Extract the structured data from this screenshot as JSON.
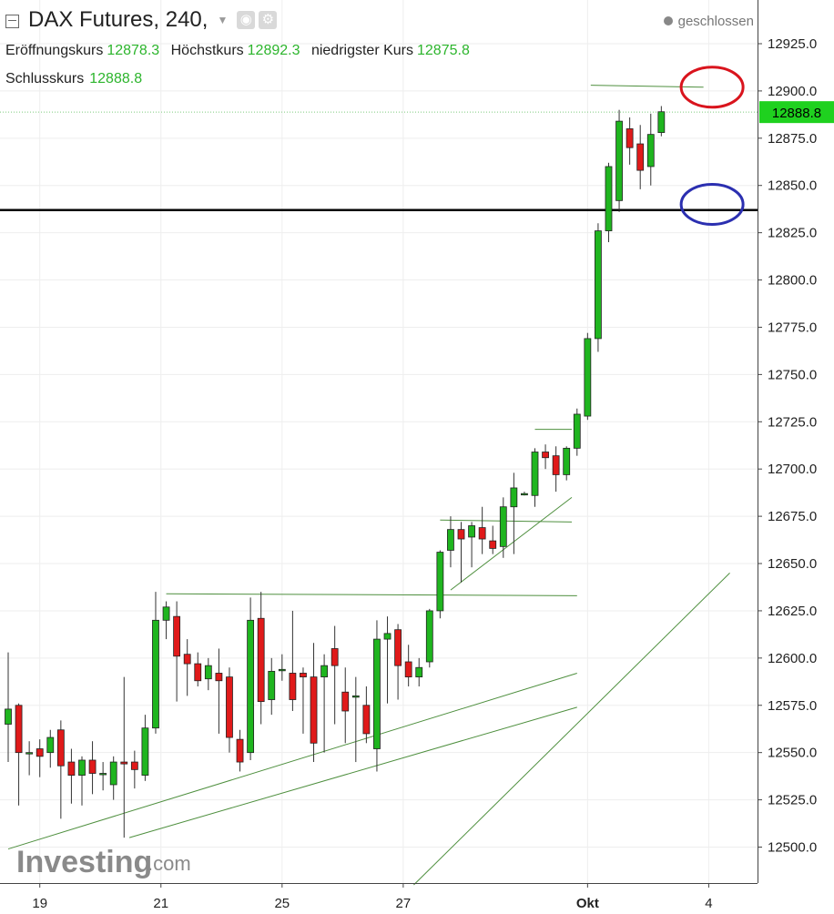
{
  "header": {
    "title": "DAX Futures, 240,",
    "status": "geschlossen",
    "open_label": "Eröffnungskurs",
    "open": "12878.3",
    "high_label": "Höchstkurs",
    "high": "12892.3",
    "low_label": "niedrigster Kurs",
    "low": "12875.8",
    "close_label": "Schlusskurs",
    "close": "12888.8"
  },
  "watermark": {
    "brand": "Investing",
    "suffix": ".com"
  },
  "colors": {
    "up": "#1fb51f",
    "down": "#e01a1a",
    "trend": "#4e8f3e",
    "level": "#000000",
    "ellipse_high": "#d9141d",
    "ellipse_low": "#2b2fb0"
  },
  "chart_data": {
    "type": "candlestick",
    "ylim": [
      12480,
      12940
    ],
    "y_ticks": [
      "12500.0",
      "12525.0",
      "12550.0",
      "12575.0",
      "12600.0",
      "12625.0",
      "12650.0",
      "12675.0",
      "12700.0",
      "12725.0",
      "12750.0",
      "12775.0",
      "12800.0",
      "12825.0",
      "12850.0",
      "12875.0",
      "12900.0",
      "12925.0"
    ],
    "x_ticks": [
      {
        "label": "19",
        "bar": 3.0
      },
      {
        "label": "21",
        "bar": 14.5
      },
      {
        "label": "25",
        "bar": 26.0
      },
      {
        "label": "27",
        "bar": 37.5
      },
      {
        "label": "Okt",
        "bar": 55.0
      },
      {
        "label": "4",
        "bar": 66.5
      }
    ],
    "current_price": "12888.8",
    "horizontal_level": 12837,
    "candles": [
      {
        "o": 12565,
        "h": 12603,
        "l": 12545,
        "c": 12573
      },
      {
        "o": 12575,
        "h": 12576,
        "l": 12522,
        "c": 12550
      },
      {
        "o": 12550,
        "h": 12556,
        "l": 12538,
        "c": 12550
      },
      {
        "o": 12552,
        "h": 12557,
        "l": 12537,
        "c": 12548
      },
      {
        "o": 12550,
        "h": 12562,
        "l": 12542,
        "c": 12558
      },
      {
        "o": 12562,
        "h": 12567,
        "l": 12515,
        "c": 12543
      },
      {
        "o": 12545,
        "h": 12552,
        "l": 12523,
        "c": 12538
      },
      {
        "o": 12538,
        "h": 12548,
        "l": 12522,
        "c": 12546
      },
      {
        "o": 12546,
        "h": 12556,
        "l": 12528,
        "c": 12539
      },
      {
        "o": 12539,
        "h": 12545,
        "l": 12530,
        "c": 12539
      },
      {
        "o": 12533,
        "h": 12548,
        "l": 12525,
        "c": 12545
      },
      {
        "o": 12545,
        "h": 12590,
        "l": 12505,
        "c": 12544
      },
      {
        "o": 12545,
        "h": 12551,
        "l": 12531,
        "c": 12541
      },
      {
        "o": 12538,
        "h": 12570,
        "l": 12535,
        "c": 12563
      },
      {
        "o": 12563,
        "h": 12635,
        "l": 12560,
        "c": 12620
      },
      {
        "o": 12620,
        "h": 12630,
        "l": 12610,
        "c": 12627
      },
      {
        "o": 12622,
        "h": 12630,
        "l": 12577,
        "c": 12601
      },
      {
        "o": 12602,
        "h": 12610,
        "l": 12580,
        "c": 12597
      },
      {
        "o": 12597,
        "h": 12603,
        "l": 12585,
        "c": 12588
      },
      {
        "o": 12589,
        "h": 12600,
        "l": 12583,
        "c": 12596
      },
      {
        "o": 12592,
        "h": 12605,
        "l": 12560,
        "c": 12588
      },
      {
        "o": 12590,
        "h": 12595,
        "l": 12550,
        "c": 12558
      },
      {
        "o": 12557,
        "h": 12562,
        "l": 12540,
        "c": 12545
      },
      {
        "o": 12550,
        "h": 12632,
        "l": 12546,
        "c": 12620
      },
      {
        "o": 12621,
        "h": 12635,
        "l": 12565,
        "c": 12577
      },
      {
        "o": 12578,
        "h": 12600,
        "l": 12570,
        "c": 12593
      },
      {
        "o": 12594,
        "h": 12602,
        "l": 12588,
        "c": 12594
      },
      {
        "o": 12592,
        "h": 12625,
        "l": 12572,
        "c": 12578
      },
      {
        "o": 12592,
        "h": 12595,
        "l": 12560,
        "c": 12590
      },
      {
        "o": 12590,
        "h": 12608,
        "l": 12545,
        "c": 12555
      },
      {
        "o": 12590,
        "h": 12602,
        "l": 12550,
        "c": 12596
      },
      {
        "o": 12605,
        "h": 12617,
        "l": 12565,
        "c": 12596
      },
      {
        "o": 12582,
        "h": 12595,
        "l": 12555,
        "c": 12572
      },
      {
        "o": 12580,
        "h": 12590,
        "l": 12545,
        "c": 12580
      },
      {
        "o": 12575,
        "h": 12585,
        "l": 12555,
        "c": 12560
      },
      {
        "o": 12552,
        "h": 12620,
        "l": 12540,
        "c": 12610
      },
      {
        "o": 12610,
        "h": 12622,
        "l": 12576,
        "c": 12613
      },
      {
        "o": 12615,
        "h": 12618,
        "l": 12578,
        "c": 12596
      },
      {
        "o": 12598,
        "h": 12607,
        "l": 12585,
        "c": 12590
      },
      {
        "o": 12590,
        "h": 12600,
        "l": 12585,
        "c": 12595
      },
      {
        "o": 12598,
        "h": 12626,
        "l": 12595,
        "c": 12625
      },
      {
        "o": 12625,
        "h": 12657,
        "l": 12621,
        "c": 12656
      },
      {
        "o": 12657,
        "h": 12675,
        "l": 12648,
        "c": 12668
      },
      {
        "o": 12668,
        "h": 12672,
        "l": 12640,
        "c": 12663
      },
      {
        "o": 12664,
        "h": 12672,
        "l": 12648,
        "c": 12670
      },
      {
        "o": 12669,
        "h": 12680,
        "l": 12655,
        "c": 12663
      },
      {
        "o": 12662,
        "h": 12670,
        "l": 12655,
        "c": 12658
      },
      {
        "o": 12659,
        "h": 12685,
        "l": 12653,
        "c": 12680
      },
      {
        "o": 12680,
        "h": 12698,
        "l": 12655,
        "c": 12690
      },
      {
        "o": 12687,
        "h": 12688,
        "l": 12686,
        "c": 12687
      },
      {
        "o": 12686,
        "h": 12711,
        "l": 12680,
        "c": 12709
      },
      {
        "o": 12709,
        "h": 12713,
        "l": 12700,
        "c": 12706
      },
      {
        "o": 12707,
        "h": 12712,
        "l": 12688,
        "c": 12697
      },
      {
        "o": 12697,
        "h": 12712,
        "l": 12694,
        "c": 12711
      },
      {
        "o": 12711,
        "h": 12732,
        "l": 12707,
        "c": 12729
      },
      {
        "o": 12728,
        "h": 12772,
        "l": 12726,
        "c": 12769
      },
      {
        "o": 12769,
        "h": 12830,
        "l": 12762,
        "c": 12826
      },
      {
        "o": 12826,
        "h": 12862,
        "l": 12820,
        "c": 12860
      },
      {
        "o": 12842,
        "h": 12890,
        "l": 12836,
        "c": 12884
      },
      {
        "o": 12880,
        "h": 12886,
        "l": 12861,
        "c": 12870
      },
      {
        "o": 12872,
        "h": 12882,
        "l": 12848,
        "c": 12858
      },
      {
        "o": 12860,
        "h": 12888,
        "l": 12850,
        "c": 12877
      },
      {
        "o": 12878,
        "h": 12892,
        "l": 12876,
        "c": 12889
      }
    ],
    "trend_lines": [
      {
        "x1": 0,
        "y1": 12499,
        "x2": 54.0,
        "y2": 12592
      },
      {
        "x1": 11.5,
        "y1": 12505,
        "x2": 54.0,
        "y2": 12574
      },
      {
        "x1": 15.0,
        "y1": 12634,
        "x2": 54.0,
        "y2": 12633
      },
      {
        "x1": 42.0,
        "y1": 12636,
        "x2": 53.5,
        "y2": 12685
      },
      {
        "x1": 41.0,
        "y1": 12673,
        "x2": 53.5,
        "y2": 12672
      },
      {
        "x1": 50.0,
        "y1": 12721,
        "x2": 53.5,
        "y2": 12721
      },
      {
        "x1": 55.3,
        "y1": 12903,
        "x2": 66.0,
        "y2": 12902
      },
      {
        "x1": 38.5,
        "y1": 12480,
        "x2": 68.5,
        "y2": 12645
      }
    ],
    "ellipses": [
      {
        "bar": 62.5,
        "y": 12902,
        "color_key": "ellipse_high"
      },
      {
        "bar": 62.5,
        "y": 12840,
        "color_key": "ellipse_low"
      }
    ]
  }
}
